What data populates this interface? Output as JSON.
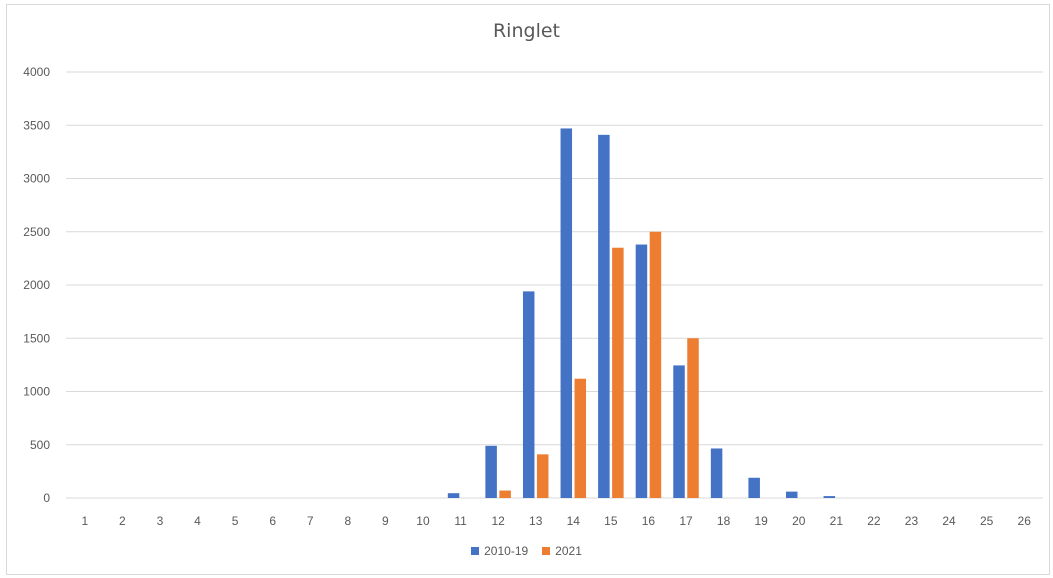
{
  "chart_data": {
    "type": "bar",
    "title": "Ringlet",
    "xlabel": "",
    "ylabel": "",
    "categories": [
      "1",
      "2",
      "3",
      "4",
      "5",
      "6",
      "7",
      "8",
      "9",
      "10",
      "11",
      "12",
      "13",
      "14",
      "15",
      "16",
      "17",
      "18",
      "19",
      "20",
      "21",
      "22",
      "23",
      "24",
      "25",
      "26"
    ],
    "ylim": [
      0,
      4000
    ],
    "yticks": [
      "0",
      "500",
      "1000",
      "1500",
      "2000",
      "2500",
      "3000",
      "3500",
      "4000"
    ],
    "grid": true,
    "legend_position": "bottom",
    "series": [
      {
        "name": "2010-19",
        "color": "#4472c4",
        "values": [
          0,
          0,
          0,
          0,
          0,
          0,
          0,
          0,
          0,
          0,
          45,
          490,
          1940,
          3470,
          3410,
          2380,
          1245,
          465,
          190,
          60,
          18,
          0,
          0,
          0,
          0,
          0
        ]
      },
      {
        "name": "2021",
        "color": "#ed7d31",
        "values": [
          0,
          0,
          0,
          0,
          0,
          0,
          0,
          0,
          0,
          0,
          0,
          70,
          410,
          1120,
          2350,
          2500,
          1500,
          0,
          0,
          0,
          0,
          0,
          0,
          0,
          0,
          0
        ]
      }
    ]
  }
}
